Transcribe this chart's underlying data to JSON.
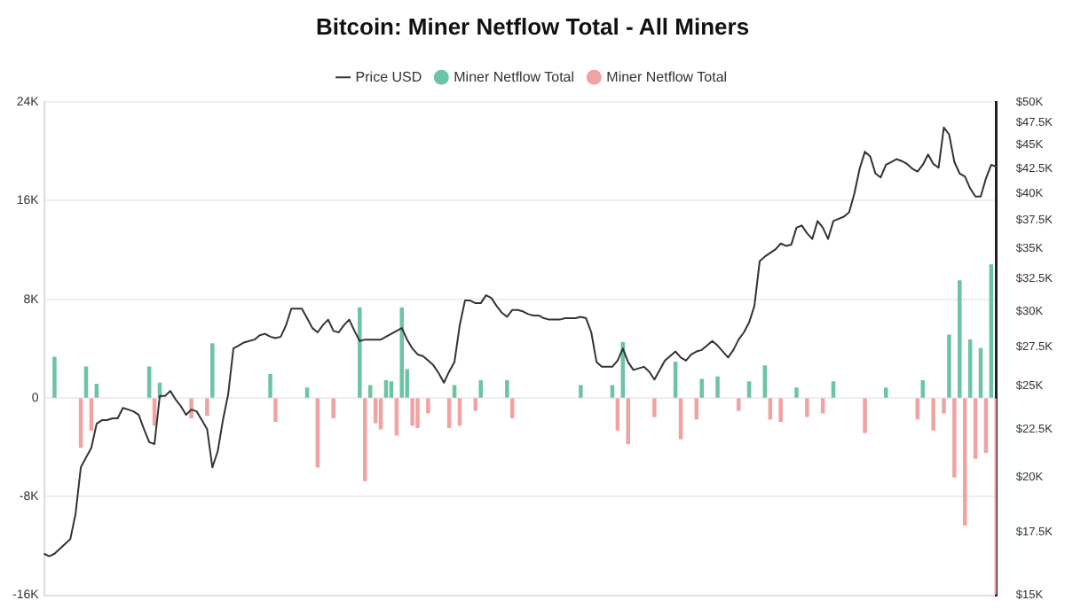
{
  "chart_data": {
    "type": "bar",
    "title": "Bitcoin: Miner Netflow Total - All Miners",
    "categories": [
      null,
      null,
      null,
      null,
      null,
      null,
      null,
      null,
      null,
      null,
      null,
      null,
      null,
      null,
      null,
      null,
      null,
      null,
      null,
      null,
      null,
      null,
      null,
      null,
      null,
      null,
      null,
      null,
      null,
      null,
      null,
      null,
      null,
      null,
      null,
      null,
      null,
      null,
      null,
      null,
      null,
      null,
      null,
      null,
      null,
      null,
      null,
      null,
      null,
      null,
      null,
      null,
      null,
      null,
      null,
      null,
      null,
      null,
      null,
      null,
      null,
      null,
      null,
      null,
      null,
      null,
      null,
      null,
      null,
      null,
      null,
      null,
      null,
      null,
      null,
      null,
      null,
      null,
      null,
      null,
      null,
      null,
      null,
      null,
      null,
      null,
      null,
      null,
      null,
      null,
      null,
      null,
      null,
      null,
      null,
      null,
      null,
      null,
      null,
      null,
      null,
      null,
      null,
      null,
      null,
      null,
      null,
      null,
      null,
      null,
      null,
      null,
      null,
      null,
      null,
      null,
      null,
      null,
      null,
      null,
      null,
      null,
      null,
      null,
      null,
      null,
      null,
      null,
      null,
      null,
      null,
      null,
      null,
      null,
      null,
      null,
      null,
      null,
      null,
      null,
      null,
      null,
      null,
      null,
      null,
      null,
      null,
      null,
      null,
      null,
      null,
      null,
      null,
      null,
      null,
      null,
      null,
      null,
      null,
      null,
      null,
      null,
      null,
      null,
      null,
      null,
      null,
      null,
      null,
      null,
      null,
      null,
      null,
      null,
      null,
      null,
      null,
      null,
      null,
      null,
      null,
      null
    ],
    "series": [
      {
        "name": "Price USD",
        "type": "line",
        "axis": "y2",
        "color": "#333333",
        "values": [
          16600,
          16500,
          16600,
          16800,
          17000,
          17200,
          18300,
          20500,
          21000,
          21500,
          22800,
          23000,
          23000,
          23100,
          23100,
          23700,
          23600,
          23500,
          23300,
          22500,
          21800,
          21700,
          24400,
          24400,
          24700,
          24200,
          23800,
          23300,
          23600,
          23500,
          23000,
          22500,
          20500,
          21300,
          23000,
          24500,
          27400,
          27600,
          27800,
          27900,
          28000,
          28300,
          28400,
          28200,
          28100,
          28200,
          29000,
          30200,
          30200,
          30200,
          29500,
          28800,
          28500,
          29000,
          29400,
          28600,
          28500,
          29000,
          29400,
          28600,
          27900,
          28000,
          28000,
          28000,
          28000,
          28200,
          28400,
          28600,
          28800,
          28000,
          27400,
          27000,
          26900,
          26600,
          26300,
          25800,
          25200,
          25900,
          26500,
          29000,
          30800,
          30800,
          30600,
          30600,
          31200,
          31000,
          30400,
          29900,
          29600,
          30100,
          30100,
          30000,
          29800,
          29700,
          29700,
          29500,
          29400,
          29400,
          29400,
          29500,
          29500,
          29500,
          29600,
          29500,
          28500,
          26500,
          26200,
          26200,
          26200,
          26600,
          27400,
          26500,
          26000,
          26100,
          26200,
          25900,
          25400,
          26000,
          26600,
          26900,
          27200,
          26800,
          26600,
          27000,
          27200,
          27300,
          27600,
          27900,
          27600,
          27200,
          26800,
          27300,
          28000,
          28500,
          29200,
          30400,
          33900,
          34300,
          34600,
          34900,
          35400,
          35200,
          35300,
          36800,
          37000,
          36300,
          35800,
          37400,
          36800,
          35800,
          37400,
          37600,
          37800,
          38200,
          40000,
          42500,
          44300,
          43800,
          42000,
          41600,
          42900,
          43200,
          43500,
          43300,
          43000,
          42500,
          42200,
          42900,
          44000,
          43000,
          42600,
          47000,
          46200,
          43200,
          42000,
          41700,
          40500,
          39700,
          39700,
          41500,
          42900,
          42700
        ]
      },
      {
        "name": "Miner Netflow Total",
        "color": "#6cc4a4",
        "values": [
          null,
          null,
          3300,
          null,
          null,
          null,
          null,
          null,
          2500,
          null,
          1100,
          null,
          null,
          null,
          null,
          null,
          null,
          null,
          null,
          null,
          2500,
          null,
          1200,
          null,
          null,
          null,
          null,
          null,
          null,
          null,
          null,
          null,
          4400,
          null,
          null,
          null,
          null,
          null,
          null,
          null,
          null,
          null,
          null,
          1900,
          null,
          null,
          null,
          null,
          null,
          null,
          800,
          null,
          null,
          null,
          null,
          null,
          null,
          null,
          null,
          null,
          7300,
          null,
          1000,
          null,
          null,
          1400,
          1300,
          null,
          7300,
          2300,
          null,
          null,
          null,
          null,
          null,
          null,
          null,
          null,
          1000,
          null,
          null,
          null,
          null,
          1400,
          null,
          null,
          null,
          null,
          1400,
          null,
          null,
          null,
          null,
          null,
          null,
          null,
          null,
          null,
          null,
          null,
          null,
          null,
          1000,
          null,
          null,
          null,
          null,
          null,
          1000,
          null,
          4500,
          null,
          null,
          null,
          null,
          null,
          null,
          null,
          null,
          null,
          2900,
          null,
          null,
          null,
          null,
          1500,
          null,
          null,
          1700,
          null,
          null,
          null,
          null,
          null,
          1300,
          null,
          null,
          2600,
          null,
          null,
          null,
          null,
          null,
          800,
          null,
          null,
          null,
          null,
          null,
          null,
          1300,
          null,
          null,
          null,
          null,
          null,
          null,
          null,
          null,
          null,
          800,
          null,
          null,
          null,
          null,
          null,
          null,
          1400,
          null,
          null,
          null,
          null,
          5100,
          null,
          9500,
          null,
          4700,
          null,
          4000,
          null,
          10800,
          null
        ]
      },
      {
        "name": "Miner Netflow Total",
        "color": "#f0a3a3",
        "values": [
          null,
          null,
          null,
          null,
          null,
          null,
          null,
          -4000,
          null,
          -2600,
          null,
          null,
          null,
          null,
          null,
          null,
          null,
          null,
          null,
          null,
          null,
          -2200,
          null,
          null,
          null,
          null,
          null,
          null,
          -1600,
          null,
          null,
          -1400,
          null,
          null,
          null,
          null,
          null,
          null,
          null,
          null,
          null,
          null,
          null,
          null,
          -1900,
          null,
          null,
          null,
          null,
          null,
          null,
          null,
          -5600,
          null,
          null,
          -1600,
          null,
          null,
          null,
          null,
          null,
          -6700,
          null,
          -2000,
          -2500,
          null,
          null,
          -3000,
          null,
          null,
          -2200,
          -2400,
          null,
          -1200,
          null,
          null,
          null,
          -2400,
          null,
          -2200,
          null,
          null,
          -1000,
          null,
          null,
          null,
          null,
          null,
          null,
          -1600,
          null,
          null,
          null,
          null,
          null,
          null,
          null,
          null,
          null,
          null,
          null,
          null,
          null,
          null,
          null,
          null,
          null,
          null,
          null,
          -2600,
          null,
          -3700,
          null,
          null,
          null,
          null,
          -1500,
          null,
          null,
          null,
          null,
          -3300,
          null,
          null,
          -1700,
          null,
          null,
          null,
          null,
          null,
          null,
          null,
          -1000,
          null,
          null,
          null,
          null,
          null,
          -1700,
          null,
          -1900,
          null,
          null,
          null,
          null,
          -1500,
          null,
          null,
          -1200,
          null,
          null,
          null,
          null,
          null,
          null,
          null,
          -2800,
          null,
          null,
          null,
          null,
          null,
          null,
          null,
          null,
          null,
          -1700,
          null,
          null,
          -2600,
          null,
          -1200,
          null,
          -6400,
          null,
          -10300,
          null,
          -4900,
          null,
          -4400,
          null,
          -15900
        ]
      }
    ],
    "ylim": [
      -16000,
      24000
    ],
    "yticks": [
      {
        "value": -16000,
        "label": "-16K"
      },
      {
        "value": -8000,
        "label": "-8K"
      },
      0,
      {
        "value": 8000,
        "label": "8K"
      },
      {
        "value": 16000,
        "label": "16K"
      },
      {
        "value": 24000,
        "label": "24K"
      }
    ],
    "y2lim": [
      15000,
      50000
    ],
    "y2ticks": [
      {
        "value": 15000,
        "label": "$15K"
      },
      {
        "value": 17500,
        "label": "$17.5K"
      },
      {
        "value": 20000,
        "label": "$20K"
      },
      {
        "value": 22500,
        "label": "$22.5K"
      },
      {
        "value": 25000,
        "label": "$25K"
      },
      {
        "value": 27500,
        "label": "$27.5K"
      },
      {
        "value": 30000,
        "label": "$30K"
      },
      {
        "value": 32500,
        "label": "$32.5K"
      },
      {
        "value": 35000,
        "label": "$35K"
      },
      {
        "value": 37500,
        "label": "$37.5K"
      },
      {
        "value": 40000,
        "label": "$40K"
      },
      {
        "value": 42500,
        "label": "$42.5K"
      },
      {
        "value": 45000,
        "label": "$45K"
      },
      {
        "value": 47500,
        "label": "$47.5K"
      },
      {
        "value": 50000,
        "label": "$50K"
      }
    ],
    "log": "y2",
    "grid": "y",
    "legend": "top",
    "marker": "none",
    "line_style": "solid"
  }
}
